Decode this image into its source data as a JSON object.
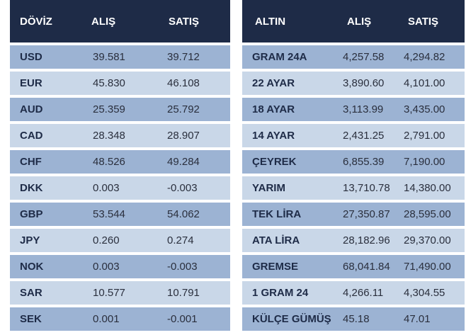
{
  "currency_table": {
    "headers": [
      "DÖVİZ",
      "ALIŞ",
      "SATIŞ"
    ],
    "rows": [
      {
        "code": "USD",
        "buy": "39.581",
        "sell": "39.712"
      },
      {
        "code": "EUR",
        "buy": "45.830",
        "sell": "46.108"
      },
      {
        "code": "AUD",
        "buy": "25.359",
        "sell": "25.792"
      },
      {
        "code": "CAD",
        "buy": "28.348",
        "sell": "28.907"
      },
      {
        "code": "CHF",
        "buy": "48.526",
        "sell": "49.284"
      },
      {
        "code": "DKK",
        "buy": "0.003",
        "sell": "-0.003"
      },
      {
        "code": "GBP",
        "buy": "53.544",
        "sell": "54.062"
      },
      {
        "code": "JPY",
        "buy": "0.260",
        "sell": "0.274"
      },
      {
        "code": "NOK",
        "buy": "0.003",
        "sell": "-0.003"
      },
      {
        "code": "SAR",
        "buy": "10.577",
        "sell": "10.791"
      },
      {
        "code": "SEK",
        "buy": "0.001",
        "sell": "-0.001"
      }
    ]
  },
  "gold_table": {
    "headers": [
      "ALTIN",
      "ALIŞ",
      "SATIŞ"
    ],
    "rows": [
      {
        "code": "GRAM 24A",
        "buy": "4,257.58",
        "sell": "4,294.82"
      },
      {
        "code": "22 AYAR",
        "buy": "3,890.60",
        "sell": "4,101.00"
      },
      {
        "code": "18 AYAR",
        "buy": "3,113.99",
        "sell": "3,435.00"
      },
      {
        "code": "14 AYAR",
        "buy": "2,431.25",
        "sell": "2,791.00"
      },
      {
        "code": "ÇEYREK",
        "buy": "6,855.39",
        "sell": "7,190.00"
      },
      {
        "code": "YARIM",
        "buy": "13,710.78",
        "sell": "14,380.00"
      },
      {
        "code": "TEK LİRA",
        "buy": "27,350.87",
        "sell": "28,595.00"
      },
      {
        "code": "ATA LİRA",
        "buy": "28,182.96",
        "sell": "29,370.00"
      },
      {
        "code": "GREMSE",
        "buy": "68,041.84",
        "sell": "71,490.00"
      },
      {
        "code": "1 GRAM 24",
        "buy": "4,266.11",
        "sell": "4,304.55"
      },
      {
        "code": "KÜLÇE GÜMÜŞ",
        "buy": "45.18",
        "sell": "47.01"
      }
    ]
  },
  "colors": {
    "header_bg": "#1e2b47",
    "row_dark": "#9cb3d3",
    "row_light": "#c9d7e8"
  }
}
